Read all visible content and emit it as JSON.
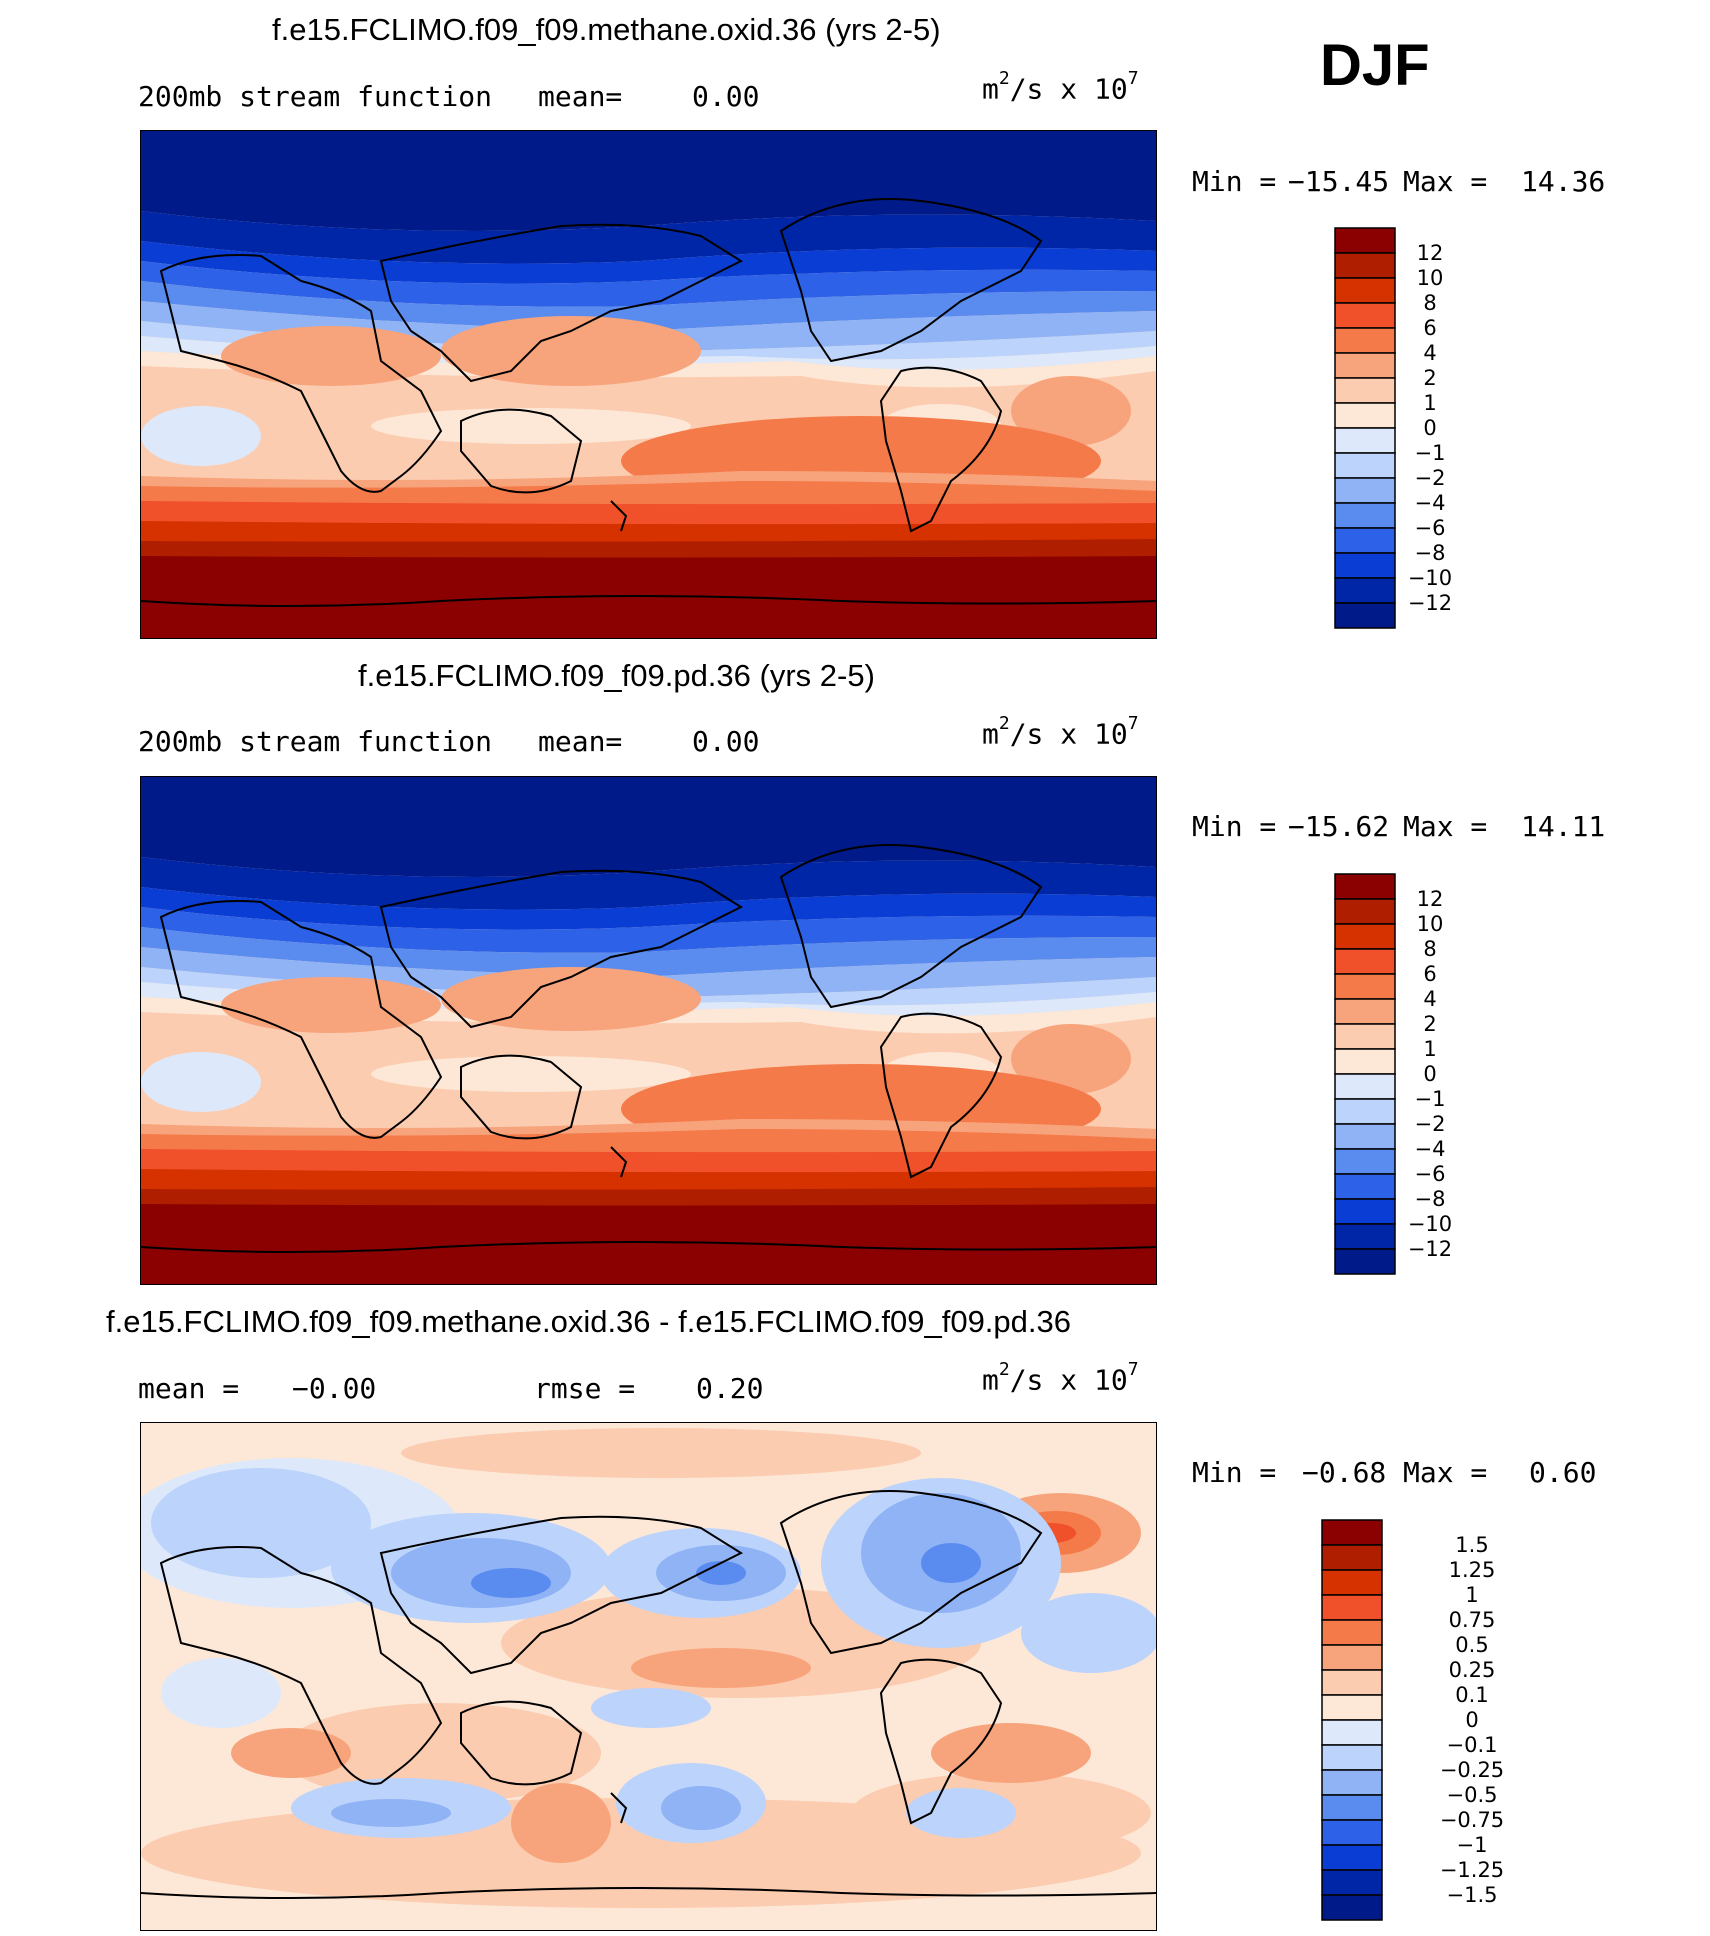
{
  "season": "DJF",
  "panels": [
    {
      "title": "f.e15.FCLIMO.f09_f09.methane.oxid.36 (yrs 2-5)",
      "left_label": "200mb stream function",
      "mean_label": "mean=",
      "mean_value": "0.00",
      "units": "m",
      "units_suffix": "/s x 10",
      "units_exp1": "2",
      "units_exp2": "7",
      "min_label": "Min =",
      "min_value": "−15.45",
      "max_label": "Max =",
      "max_value": "14.36",
      "colorbar_labels": [
        "12",
        "10",
        "8",
        "6",
        "4",
        "2",
        "1",
        "0",
        "−1",
        "−2",
        "−4",
        "−6",
        "−8",
        "−10",
        "−12"
      ]
    },
    {
      "title": "f.e15.FCLIMO.f09_f09.pd.36 (yrs 2-5)",
      "left_label": "200mb stream function",
      "mean_label": "mean=",
      "mean_value": "0.00",
      "units": "m",
      "units_suffix": "/s x 10",
      "units_exp1": "2",
      "units_exp2": "7",
      "min_label": "Min =",
      "min_value": "−15.62",
      "max_label": "Max =",
      "max_value": "14.11",
      "colorbar_labels": [
        "12",
        "10",
        "8",
        "6",
        "4",
        "2",
        "1",
        "0",
        "−1",
        "−2",
        "−4",
        "−6",
        "−8",
        "−10",
        "−12"
      ]
    },
    {
      "title": "f.e15.FCLIMO.f09_f09.methane.oxid.36 - f.e15.FCLIMO.f09_f09.pd.36",
      "left_label": "mean =",
      "mean_value": "−0.00",
      "rmse_label": "rmse =",
      "rmse_value": "0.20",
      "units": "m",
      "units_suffix": "/s x 10",
      "units_exp1": "2",
      "units_exp2": "7",
      "min_label": "Min =",
      "min_value": "−0.68",
      "max_label": "Max =",
      "max_value": "0.60",
      "colorbar_labels": [
        "1.5",
        "1.25",
        "1",
        "0.75",
        "0.5",
        "0.25",
        "0.1",
        "0",
        "−0.1",
        "−0.25",
        "−0.5",
        "−0.75",
        "−1",
        "−1.25",
        "−1.5"
      ]
    }
  ],
  "palette": [
    "#8b0000",
    "#b01e00",
    "#d63200",
    "#f0502a",
    "#f57a4a",
    "#f7a47c",
    "#fcccb0",
    "#fde8d8",
    "#dde9fb",
    "#bcd3fb",
    "#8fb3f5",
    "#5a8cf0",
    "#2d62e8",
    "#0a3dd4",
    "#0026a8",
    "#001a8a"
  ]
}
